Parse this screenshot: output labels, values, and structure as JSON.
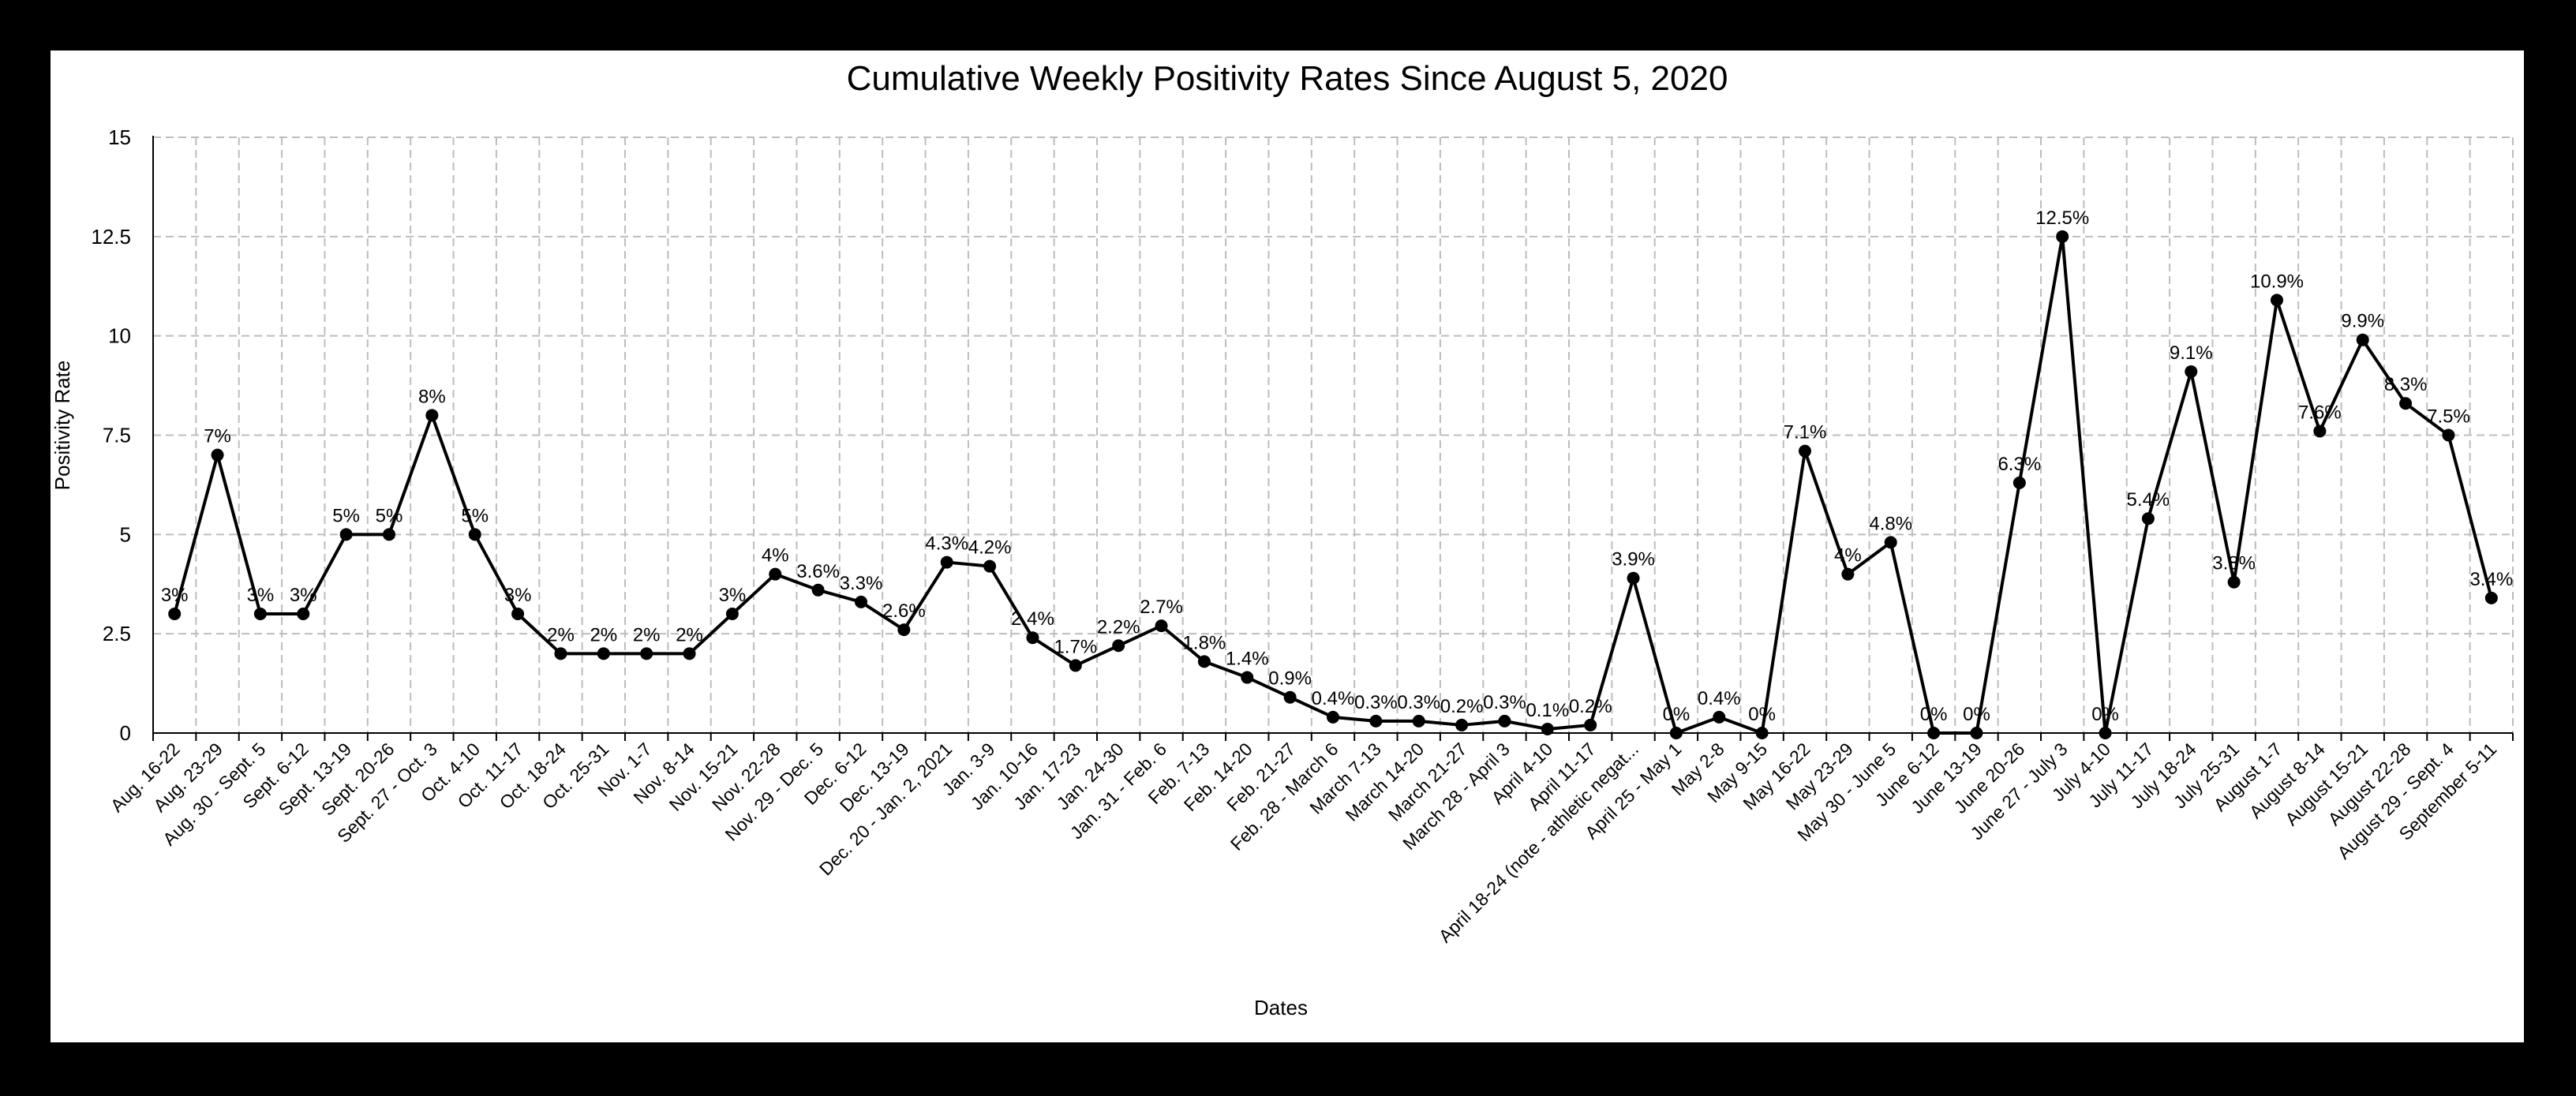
{
  "chart_data": {
    "type": "line",
    "title": "Cumulative Weekly Positivity Rates Since August 5, 2020",
    "xlabel": "Dates",
    "ylabel": "Positivity Rate",
    "ylim": [
      0,
      15
    ],
    "yticks": [
      "0",
      "2.5",
      "5",
      "7.5",
      "10",
      "12.5",
      "15"
    ],
    "grid": true,
    "line_color": "#000000",
    "categories": [
      "Aug. 16-22",
      "Aug. 23-29",
      "Aug. 30 - Sept. 5",
      "Sept. 6-12",
      "Sept. 13-19",
      "Sept. 20-26",
      "Sept. 27 - Oct. 3",
      "Oct. 4-10",
      "Oct. 11-17",
      "Oct. 18-24",
      "Oct. 25-31",
      "Nov. 1-7",
      "Nov. 8-14",
      "Nov. 15-21",
      "Nov. 22-28",
      "Nov. 29 - Dec. 5",
      "Dec. 6-12",
      "Dec. 13-19",
      "Dec. 20 - Jan. 2, 2021",
      "Jan. 3-9",
      "Jan. 10-16",
      "Jan. 17-23",
      "Jan. 24-30",
      "Jan. 31 - Feb. 6",
      "Feb. 7-13",
      "Feb. 14-20",
      "Feb. 21-27",
      "Feb. 28 - March 6",
      "March 7-13",
      "March 14-20",
      "March 21-27",
      "March 28 - April 3",
      "April 4-10",
      "April 11-17",
      "April 18-24 (note - athletic negat...",
      "April 25 - May 1",
      "May 2-8",
      "May 9-15",
      "May 16-22",
      "May 23-29",
      "May 30 - June 5",
      "June 6-12",
      "June 13-19",
      "June 20-26",
      "June 27 - July 3",
      "July 4-10",
      "July 11-17",
      "July 18-24",
      "July 25-31",
      "August 1-7",
      "August 8-14",
      "August 15-21",
      "August 22-28",
      "August 29 - Sept. 4",
      "September 5-11"
    ],
    "series": [
      {
        "values": [
          3,
          7,
          3,
          3,
          5,
          5,
          8,
          5,
          3,
          2,
          2,
          2,
          2,
          3,
          4,
          3.6,
          3.3,
          2.6,
          4.3,
          4.2,
          2.4,
          1.7,
          2.2,
          2.7,
          1.8,
          1.4,
          0.9,
          0.4,
          0.3,
          0.3,
          0.2,
          0.3,
          0.1,
          0.2,
          3.9,
          0,
          0.4,
          0,
          7.1,
          4,
          4.8,
          0,
          0,
          6.3,
          12.5,
          0,
          5.4,
          9.1,
          3.8,
          10.9,
          7.6,
          9.9,
          8.3,
          7.5,
          3.4
        ],
        "data_labels": [
          "3%",
          "7%",
          "3%",
          "3%",
          "5%",
          "5%",
          "8%",
          "5%",
          "3%",
          "2%",
          "2%",
          "2%",
          "2%",
          "3%",
          "4%",
          "3.6%",
          "3.3%",
          "2.6%",
          "4.3%",
          "4.2%",
          "2.4%",
          "1.7%",
          "2.2%",
          "2.7%",
          "1.8%",
          "1.4%",
          "0.9%",
          "0.4%",
          "0.3%",
          "0.3%",
          "0.2%",
          "0.3%",
          "0.1%",
          "0.2%",
          "3.9%",
          "0%",
          "0.4%",
          "0%",
          "7.1%",
          "4%",
          "4.8%",
          "0%",
          "0%",
          "6.3%",
          "12.5%",
          "0%",
          "5.4%",
          "9.1%",
          "3.8%",
          "10.9%",
          "7.6%",
          "9.9%",
          "8.3%",
          "7.5%",
          "3.4%"
        ]
      }
    ]
  }
}
